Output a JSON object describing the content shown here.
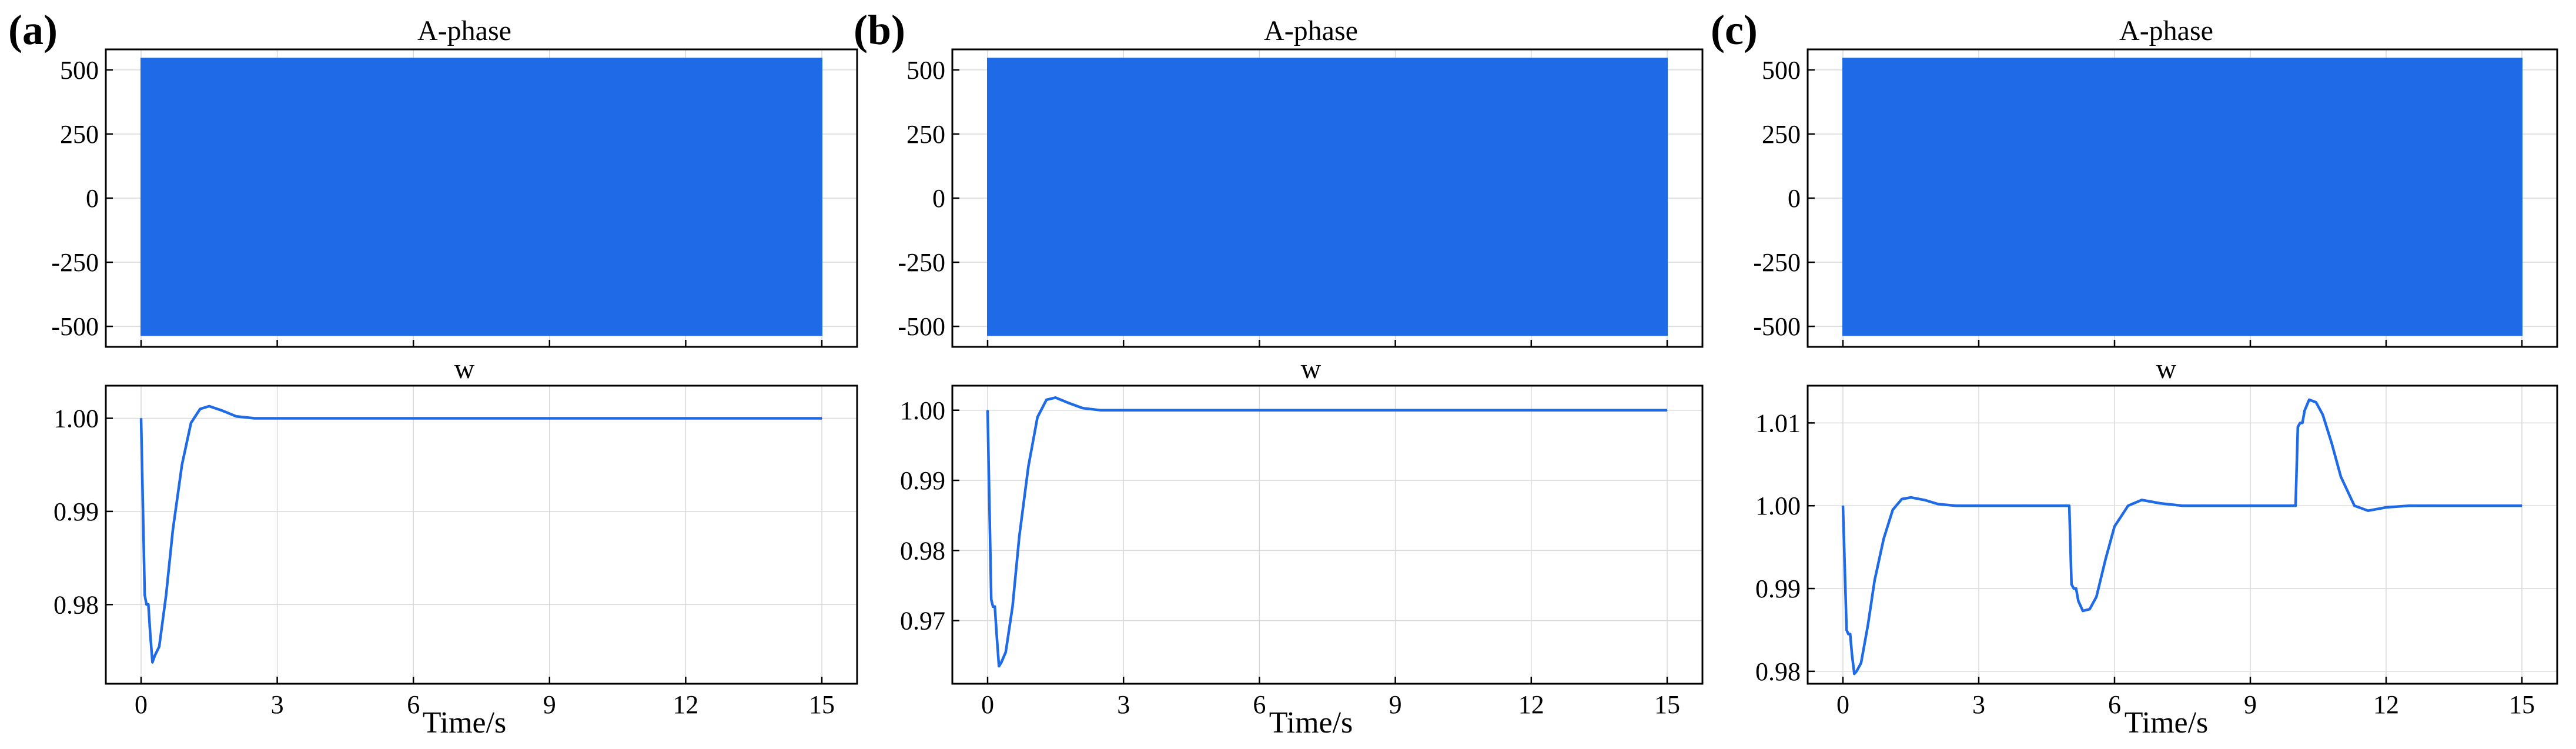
{
  "colors": {
    "series": "#1f6ae6",
    "grid": "#d9d9d9",
    "axis": "#000000"
  },
  "chart_data": [
    {
      "panel": "(a)",
      "type": "line",
      "title": "A-phase",
      "xlabel": "",
      "ylabel": "",
      "xlim": [
        0,
        15
      ],
      "ylim": [
        -580,
        580
      ],
      "yticks": [
        500,
        250,
        0,
        -250,
        -500
      ],
      "ytick_labels": [
        "500",
        "250",
        "0",
        "-250",
        "-500"
      ],
      "grid": true,
      "series": [
        {
          "band": {
            "x": [
              0,
              15
            ],
            "upper": [
              545,
              545
            ],
            "lower": [
              -535,
              -535
            ]
          }
        }
      ]
    },
    {
      "panel": "(a)",
      "type": "line",
      "title": "w",
      "xlabel": "Time/s",
      "ylabel": "",
      "xlim": [
        0,
        15
      ],
      "ylim": [
        0.9715,
        1.0035
      ],
      "xticks": [
        0,
        3,
        6,
        9,
        12,
        15
      ],
      "xtick_labels": [
        "0",
        "3",
        "6",
        "9",
        "12",
        "15"
      ],
      "yticks": [
        1.0,
        0.99,
        0.98
      ],
      "ytick_labels": [
        "1.00",
        "0.99",
        "0.98"
      ],
      "grid": true,
      "series": [
        {
          "x": [
            0,
            0.08,
            0.12,
            0.16,
            0.2,
            0.25,
            0.3,
            0.4,
            0.55,
            0.7,
            0.9,
            1.1,
            1.3,
            1.5,
            1.8,
            2.1,
            2.5,
            3,
            4,
            15
          ],
          "y": [
            1.0,
            0.981,
            0.98,
            0.98,
            0.977,
            0.9738,
            0.9745,
            0.9755,
            0.981,
            0.988,
            0.995,
            0.9995,
            1.001,
            1.0013,
            1.0008,
            1.0002,
            1.0,
            1.0,
            1.0,
            1.0
          ]
        }
      ]
    },
    {
      "panel": "(b)",
      "type": "line",
      "title": "A-phase",
      "xlabel": "",
      "ylabel": "",
      "xlim": [
        0,
        15
      ],
      "ylim": [
        -580,
        580
      ],
      "yticks": [
        500,
        250,
        0,
        -250,
        -500
      ],
      "ytick_labels": [
        "500",
        "250",
        "0",
        "-250",
        "-500"
      ],
      "grid": true,
      "series": [
        {
          "band": {
            "x": [
              0,
              15
            ],
            "upper": [
              545,
              545
            ],
            "lower": [
              -535,
              -535
            ]
          }
        }
      ]
    },
    {
      "panel": "(b)",
      "type": "line",
      "title": "w",
      "xlabel": "Time/s",
      "ylabel": "",
      "xlim": [
        0,
        15
      ],
      "ylim": [
        0.961,
        1.0035
      ],
      "xticks": [
        0,
        3,
        6,
        9,
        12,
        15
      ],
      "xtick_labels": [
        "0",
        "3",
        "6",
        "9",
        "12",
        "15"
      ],
      "yticks": [
        1.0,
        0.99,
        0.98,
        0.97
      ],
      "ytick_labels": [
        "1.00",
        "0.99",
        "0.98",
        "0.97"
      ],
      "grid": true,
      "series": [
        {
          "x": [
            0,
            0.08,
            0.12,
            0.16,
            0.2,
            0.25,
            0.3,
            0.4,
            0.55,
            0.7,
            0.9,
            1.1,
            1.3,
            1.5,
            1.8,
            2.1,
            2.5,
            3,
            4,
            15
          ],
          "y": [
            1.0,
            0.973,
            0.972,
            0.972,
            0.968,
            0.9635,
            0.964,
            0.9655,
            0.972,
            0.982,
            0.992,
            0.999,
            1.0015,
            1.0018,
            1.001,
            1.0003,
            1.0,
            1.0,
            1.0,
            1.0
          ]
        }
      ]
    },
    {
      "panel": "(c)",
      "type": "line",
      "title": "A-phase",
      "xlabel": "",
      "ylabel": "",
      "xlim": [
        0,
        15
      ],
      "ylim": [
        -580,
        580
      ],
      "yticks": [
        500,
        250,
        0,
        -250,
        -500
      ],
      "ytick_labels": [
        "500",
        "250",
        "0",
        "-250",
        "-500"
      ],
      "grid": true,
      "series": [
        {
          "band": {
            "x": [
              0,
              15
            ],
            "upper": [
              545,
              545
            ],
            "lower": [
              -535,
              -535
            ]
          }
        }
      ]
    },
    {
      "panel": "(c)",
      "type": "line",
      "title": "w",
      "xlabel": "Time/s",
      "ylabel": "",
      "xlim": [
        0,
        15
      ],
      "ylim": [
        0.9785,
        1.0145
      ],
      "xticks": [
        0,
        3,
        6,
        9,
        12,
        15
      ],
      "xtick_labels": [
        "0",
        "3",
        "6",
        "9",
        "12",
        "15"
      ],
      "yticks": [
        1.01,
        1.0,
        0.99,
        0.98
      ],
      "ytick_labels": [
        "1.01",
        "1.00",
        "0.99",
        "0.98"
      ],
      "grid": true,
      "series": [
        {
          "x": [
            0,
            0.08,
            0.12,
            0.16,
            0.2,
            0.25,
            0.3,
            0.4,
            0.55,
            0.7,
            0.9,
            1.1,
            1.3,
            1.5,
            1.8,
            2.1,
            2.5,
            3,
            4,
            5,
            5.05,
            5.1,
            5.15,
            5.2,
            5.3,
            5.45,
            5.6,
            5.8,
            6.0,
            6.3,
            6.6,
            7.0,
            7.5,
            8,
            9,
            10,
            10.05,
            10.1,
            10.15,
            10.2,
            10.3,
            10.45,
            10.6,
            10.8,
            11.0,
            11.3,
            11.6,
            12.0,
            12.5,
            13,
            15
          ],
          "y": [
            1.0,
            0.985,
            0.9845,
            0.9845,
            0.982,
            0.9797,
            0.98,
            0.981,
            0.9855,
            0.991,
            0.996,
            0.9995,
            1.0008,
            1.001,
            1.0007,
            1.0002,
            1.0,
            1.0,
            1.0,
            1.0,
            0.9905,
            0.99,
            0.99,
            0.9885,
            0.9873,
            0.9875,
            0.989,
            0.9935,
            0.9975,
            1.0,
            1.0007,
            1.0003,
            1.0,
            1.0,
            1.0,
            1.0,
            1.0095,
            1.01,
            1.01,
            1.0115,
            1.0128,
            1.0125,
            1.011,
            1.0075,
            1.0035,
            1.0,
            0.9994,
            0.9998,
            1.0,
            1.0,
            1.0
          ]
        }
      ]
    }
  ]
}
